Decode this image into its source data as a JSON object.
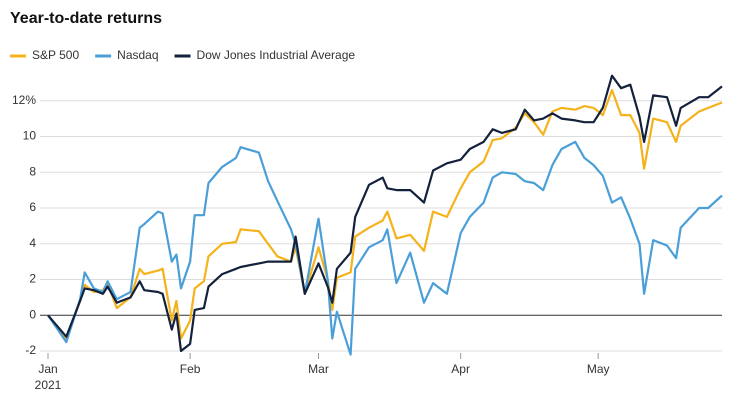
{
  "chart_data": {
    "type": "line",
    "title": "Year-to-date returns",
    "x": [
      0,
      4,
      7,
      8,
      10,
      12,
      13,
      15,
      18,
      20,
      21,
      24,
      25,
      27,
      28,
      29,
      31,
      32,
      34,
      35,
      38,
      41,
      42,
      46,
      48,
      50,
      53,
      54,
      56,
      59,
      61,
      62,
      63,
      66,
      67,
      70,
      73,
      74,
      76,
      79,
      82,
      84,
      87,
      90,
      92,
      95,
      97,
      99,
      102,
      104,
      106,
      108,
      110,
      112,
      115,
      117,
      119,
      121,
      123,
      125,
      127,
      129,
      130,
      132,
      135,
      137,
      138,
      142,
      144,
      147
    ],
    "series": [
      {
        "name": "S&P 500",
        "color": "#f5b21b",
        "values": [
          0,
          -1.3,
          0.8,
          1.7,
          1.3,
          1.4,
          1.8,
          0.4,
          1.0,
          2.6,
          2.3,
          2.5,
          2.6,
          -0.3,
          0.8,
          -1.3,
          -0.3,
          1.5,
          1.9,
          3.3,
          4.0,
          4.1,
          4.8,
          4.7,
          4.0,
          3.3,
          3.0,
          3.8,
          1.2,
          3.8,
          2.0,
          0.3,
          2.1,
          2.4,
          4.4,
          4.9,
          5.3,
          5.8,
          4.3,
          4.5,
          3.6,
          5.8,
          5.5,
          7.1,
          8.0,
          8.6,
          9.8,
          9.9,
          10.5,
          11.3,
          10.8,
          10.1,
          11.4,
          11.6,
          11.5,
          11.7,
          11.6,
          11.2,
          12.6,
          11.2,
          11.2,
          10.2,
          8.2,
          11.0,
          10.8,
          9.7,
          10.6,
          11.4,
          11.6,
          11.9
        ]
      },
      {
        "name": "Nasdaq",
        "color": "#4a9fd8",
        "values": [
          0,
          -1.5,
          0.9,
          2.4,
          1.5,
          1.3,
          1.9,
          0.9,
          1.3,
          4.9,
          5.1,
          5.8,
          5.7,
          3.0,
          3.4,
          1.5,
          3.0,
          5.6,
          5.6,
          7.4,
          8.3,
          8.8,
          9.4,
          9.1,
          7.5,
          6.4,
          4.8,
          4.0,
          1.2,
          5.4,
          2.0,
          -1.3,
          0.2,
          -2.2,
          2.6,
          3.8,
          4.2,
          4.8,
          1.8,
          3.5,
          0.7,
          1.8,
          1.2,
          4.6,
          5.5,
          6.3,
          7.7,
          8.0,
          7.9,
          7.5,
          7.4,
          7.0,
          8.4,
          9.3,
          9.7,
          8.8,
          8.4,
          7.8,
          6.3,
          6.6,
          5.4,
          4.0,
          1.2,
          4.2,
          3.9,
          3.2,
          4.9,
          6.0,
          6.0,
          6.7
        ]
      },
      {
        "name": "Dow Jones Industrial Average",
        "color": "#14213d",
        "values": [
          0,
          -1.2,
          0.8,
          1.5,
          1.4,
          1.2,
          1.6,
          0.7,
          1.0,
          1.9,
          1.4,
          1.3,
          1.2,
          -0.8,
          0.1,
          -2.0,
          -1.6,
          0.3,
          0.4,
          1.6,
          2.3,
          2.6,
          2.7,
          2.9,
          3.0,
          3.0,
          3.0,
          4.4,
          1.2,
          2.9,
          1.6,
          0.7,
          2.6,
          3.5,
          5.5,
          7.3,
          7.7,
          7.1,
          7.0,
          7.0,
          6.3,
          8.1,
          8.5,
          8.7,
          9.3,
          9.7,
          10.4,
          10.2,
          10.4,
          11.5,
          10.9,
          11.0,
          11.3,
          11.0,
          10.9,
          10.8,
          10.8,
          11.6,
          13.4,
          12.7,
          12.9,
          11.1,
          9.7,
          12.3,
          12.2,
          10.6,
          11.6,
          12.2,
          12.2,
          12.8
        ]
      }
    ],
    "xlim": [
      0,
      147
    ],
    "xticks": [
      {
        "value": 0,
        "label": "Jan"
      },
      {
        "value": 31,
        "label": "Feb"
      },
      {
        "value": 59,
        "label": "Mar"
      },
      {
        "value": 90,
        "label": "Apr"
      },
      {
        "value": 120,
        "label": "May"
      }
    ],
    "x_year_label": "2021",
    "ylim": [
      -2,
      14
    ],
    "yticks": [
      -2,
      0,
      2,
      4,
      6,
      8,
      10,
      {
        "value": 12,
        "label": "12%"
      }
    ],
    "grid": true,
    "legend": "top-left"
  }
}
